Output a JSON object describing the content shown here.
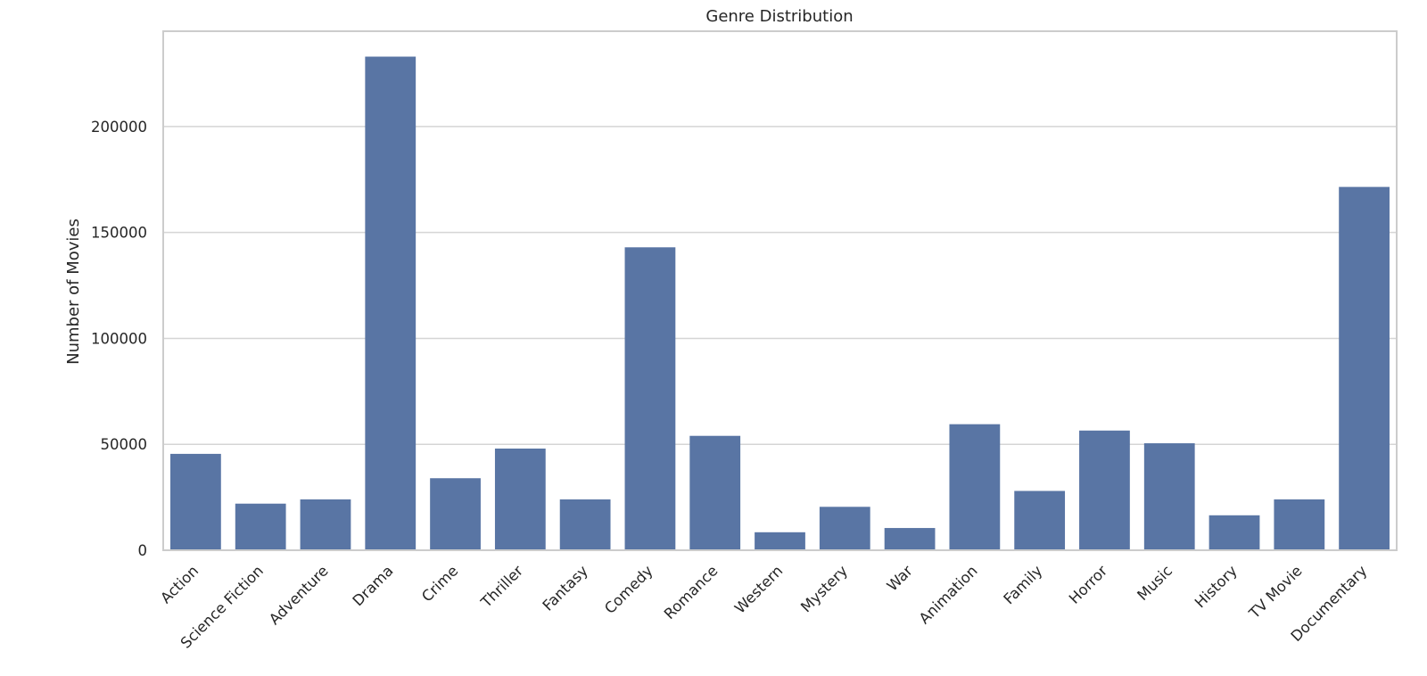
{
  "chart_data": {
    "type": "bar",
    "title": "Genre Distribution",
    "xlabel": "",
    "ylabel": "Number of Movies",
    "categories": [
      "Action",
      "Science Fiction",
      "Adventure",
      "Drama",
      "Crime",
      "Thriller",
      "Fantasy",
      "Comedy",
      "Romance",
      "Western",
      "Mystery",
      "War",
      "Animation",
      "Family",
      "Horror",
      "Music",
      "History",
      "TV Movie",
      "Documentary"
    ],
    "values": [
      45500,
      22000,
      24000,
      233000,
      34000,
      48000,
      24000,
      143000,
      54000,
      8500,
      20500,
      10500,
      59500,
      28000,
      56500,
      50500,
      16500,
      24000,
      171500
    ],
    "yticks": [
      0,
      50000,
      100000,
      150000,
      200000
    ],
    "ylim": [
      0,
      245000
    ],
    "grid": true,
    "bar_color": "#5975a4"
  }
}
